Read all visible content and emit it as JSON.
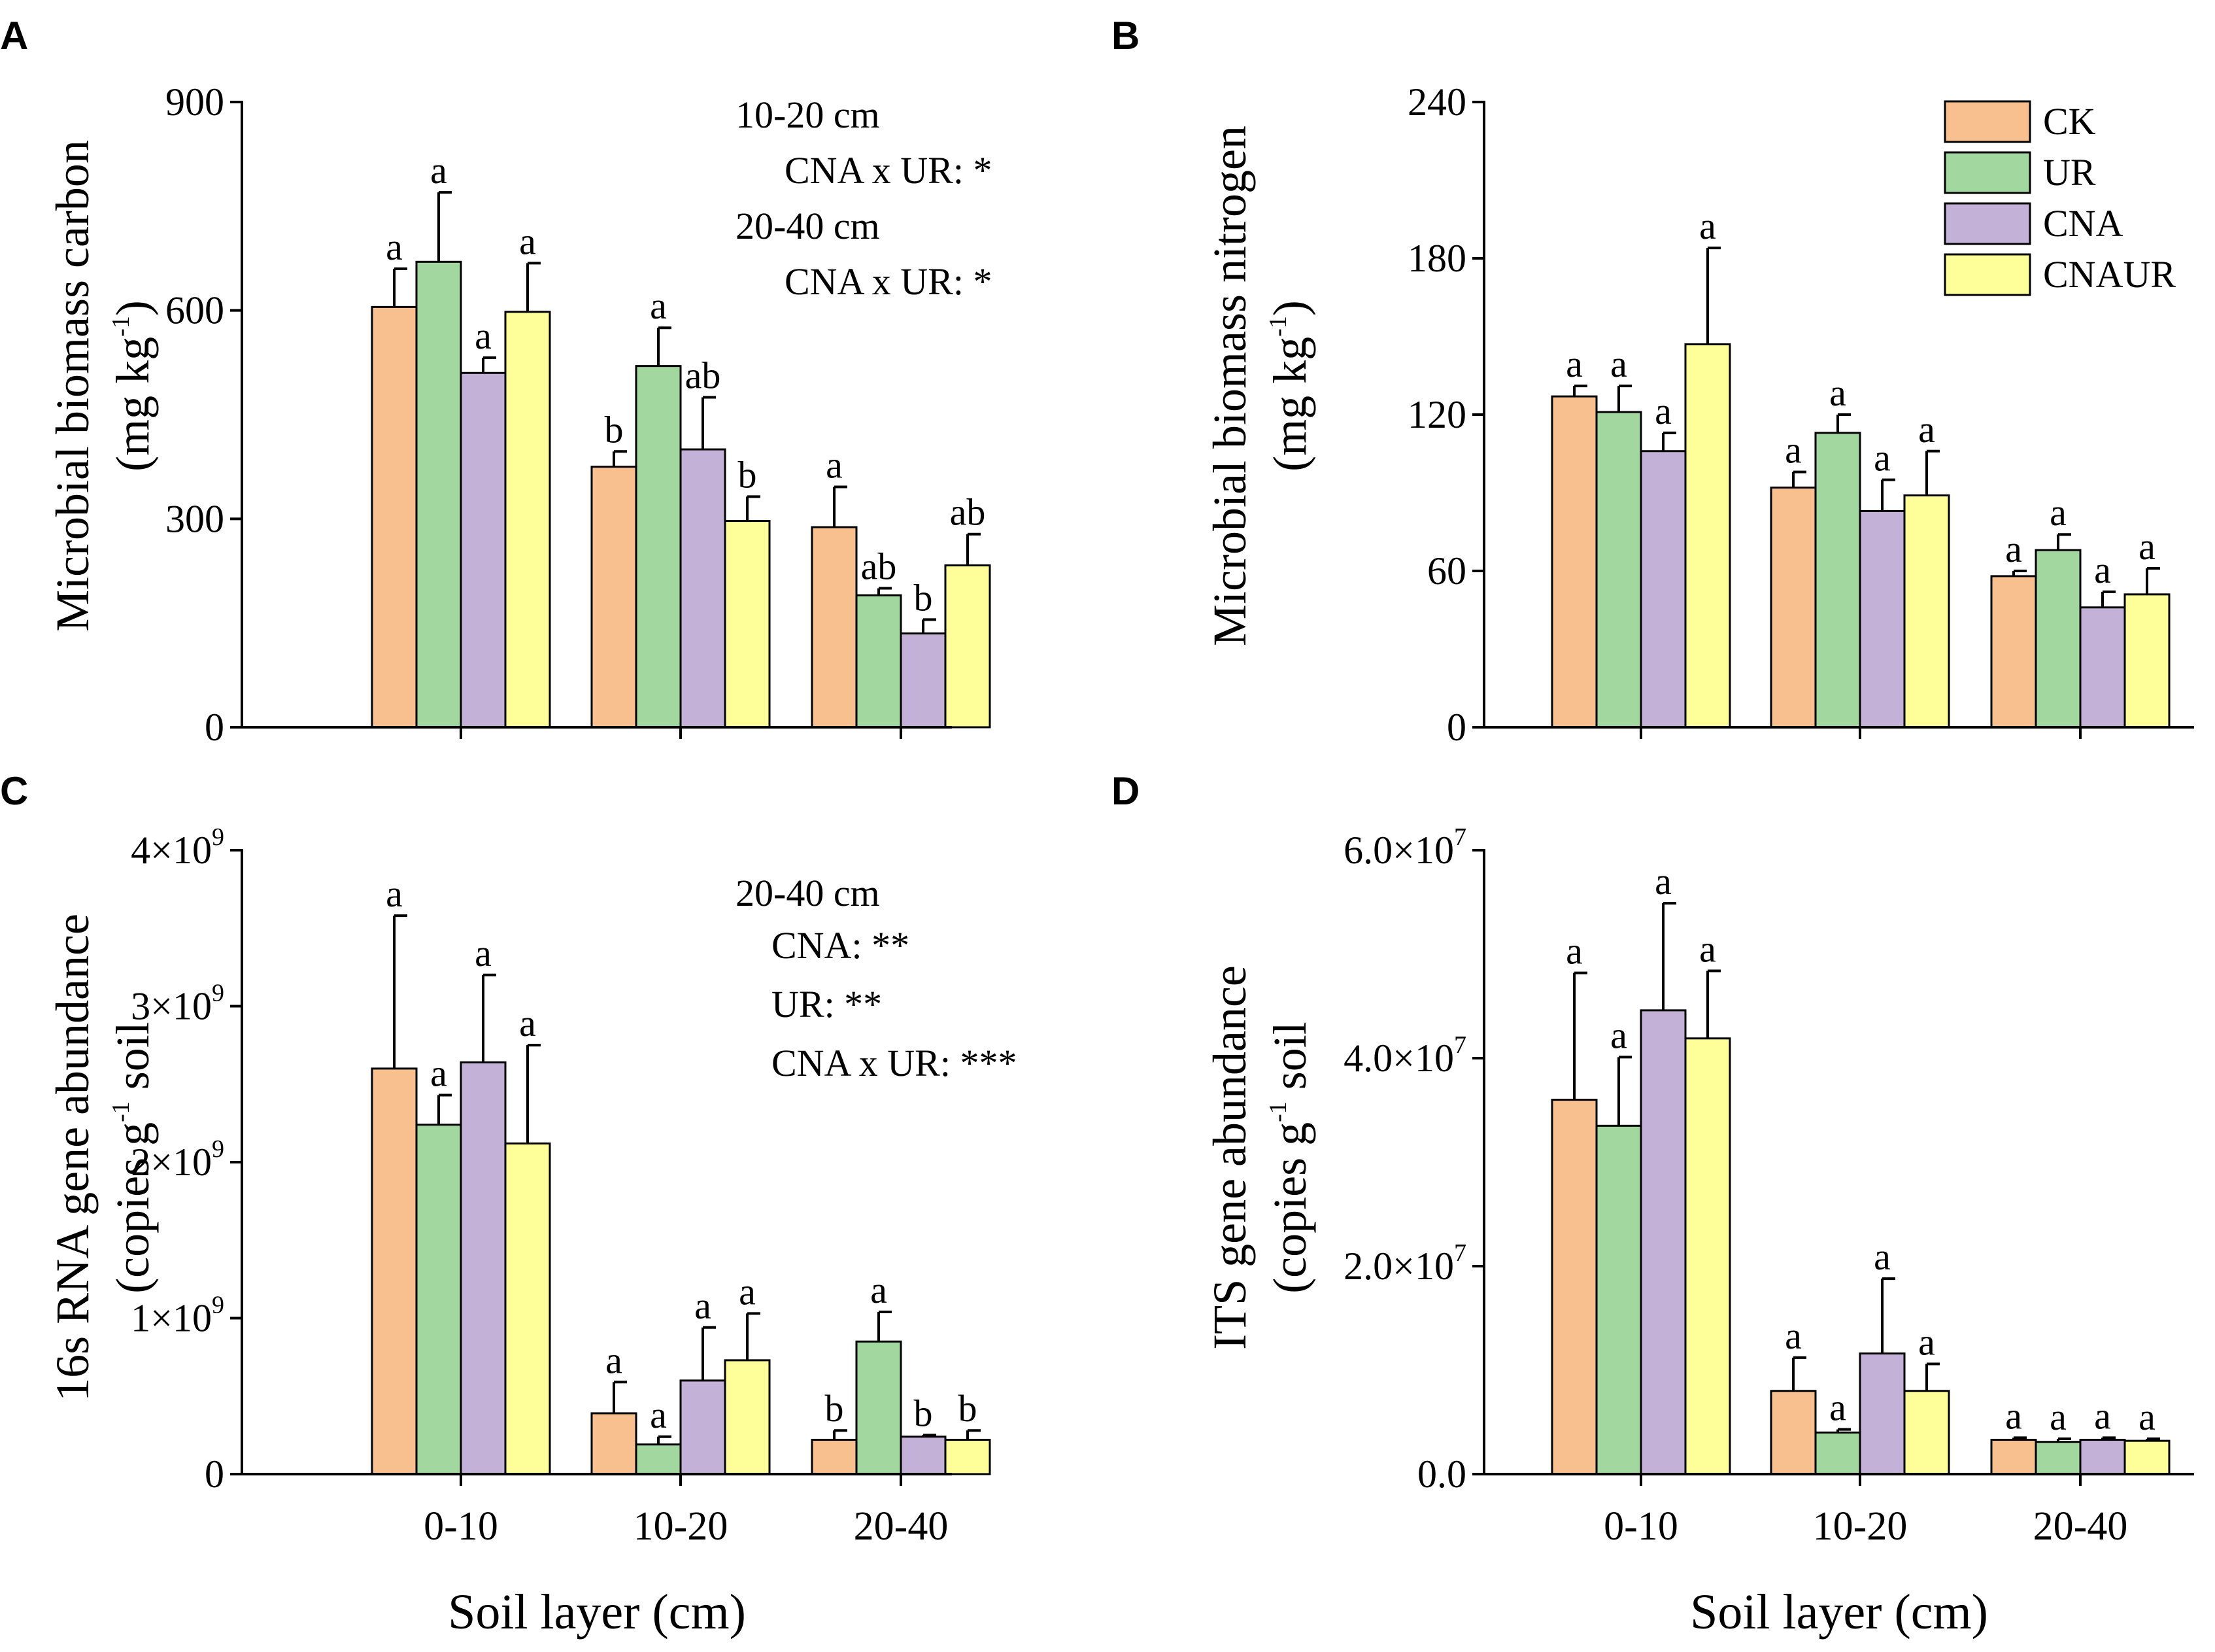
{
  "figure": {
    "x_label": "Soil layer (cm)",
    "groups": [
      "0-10",
      "10-20",
      "20-40"
    ],
    "legend": [
      {
        "name": "CK",
        "color": "#F9C08F"
      },
      {
        "name": "UR",
        "color": "#A3D7A0"
      },
      {
        "name": "CNA",
        "color": "#C3B1D7"
      },
      {
        "name": "CNAUR",
        "color": "#FFFF99"
      }
    ]
  },
  "chart_data": [
    {
      "panel": "A",
      "type": "bar",
      "ylabel_line1": "Microbial biomass carbon",
      "ylabel_line2": "(mg kg",
      "ylabel_sup": "-1",
      "ylabel_end": ")",
      "ylim": [
        0,
        900
      ],
      "yticks": [
        {
          "value": 0,
          "label": "0"
        },
        {
          "value": 300,
          "label": "300"
        },
        {
          "value": 600,
          "label": "600"
        },
        {
          "value": 900,
          "label": "900"
        }
      ],
      "categories": [
        "0-10",
        "10-20",
        "20-40"
      ],
      "series": [
        {
          "name": "CK",
          "values": [
            605,
            375,
            288
          ],
          "errors": [
            55,
            22,
            58
          ],
          "letters": [
            "a",
            "b",
            "a"
          ]
        },
        {
          "name": "UR",
          "values": [
            670,
            520,
            190
          ],
          "errors": [
            100,
            55,
            10
          ],
          "letters": [
            "a",
            "a",
            "ab"
          ]
        },
        {
          "name": "CNA",
          "values": [
            510,
            400,
            135
          ],
          "errors": [
            22,
            75,
            20
          ],
          "letters": [
            "a",
            "ab",
            "b"
          ]
        },
        {
          "name": "CNAUR",
          "values": [
            598,
            297,
            233
          ],
          "errors": [
            70,
            35,
            45
          ],
          "letters": [
            "a",
            "b",
            "ab"
          ]
        }
      ],
      "annotations": [
        "10-20 cm",
        "CNA x UR: *",
        "20-40 cm",
        "CNA x UR: *"
      ]
    },
    {
      "panel": "B",
      "type": "bar",
      "ylabel_line1": "Microbial biomass nitrogen",
      "ylabel_line2": "(mg kg",
      "ylabel_sup": "-1",
      "ylabel_end": ")",
      "ylim": [
        0,
        240
      ],
      "yticks": [
        {
          "value": 0,
          "label": "0"
        },
        {
          "value": 60,
          "label": "60"
        },
        {
          "value": 120,
          "label": "120"
        },
        {
          "value": 180,
          "label": "180"
        },
        {
          "value": 240,
          "label": "240"
        }
      ],
      "categories": [
        "0-10",
        "10-20",
        "20-40"
      ],
      "series": [
        {
          "name": "CK",
          "values": [
            127,
            92,
            58
          ],
          "errors": [
            4,
            6,
            2
          ],
          "letters": [
            "a",
            "a",
            "a"
          ]
        },
        {
          "name": "UR",
          "values": [
            121,
            113,
            68
          ],
          "errors": [
            10,
            7,
            6
          ],
          "letters": [
            "a",
            "a",
            "a"
          ]
        },
        {
          "name": "CNA",
          "values": [
            106,
            83,
            46
          ],
          "errors": [
            7,
            12,
            6
          ],
          "letters": [
            "a",
            "a",
            "a"
          ]
        },
        {
          "name": "CNAUR",
          "values": [
            147,
            89,
            51
          ],
          "errors": [
            37,
            17,
            10
          ],
          "letters": [
            "a",
            "a",
            "a"
          ]
        }
      ],
      "annotations": []
    },
    {
      "panel": "C",
      "type": "bar",
      "ylabel_line1": "16s RNA gene abundance",
      "ylabel_line2": "(copies g",
      "ylabel_sup": "-1",
      "ylabel_end": " soil",
      "ylim": [
        0,
        4
      ],
      "yticks": [
        {
          "value": 0,
          "label": "0"
        },
        {
          "value": 1,
          "label": "1×10",
          "exp": "9"
        },
        {
          "value": 2,
          "label": "2×10",
          "exp": "9"
        },
        {
          "value": 3,
          "label": "3×10",
          "exp": "9"
        },
        {
          "value": 4,
          "label": "4×10",
          "exp": "9"
        }
      ],
      "units": "×10^9",
      "categories": [
        "0-10",
        "10-20",
        "20-40"
      ],
      "series": [
        {
          "name": "CK",
          "values": [
            2.6,
            0.39,
            0.22
          ],
          "errors": [
            0.98,
            0.2,
            0.06
          ],
          "letters": [
            "a",
            "a",
            "b"
          ]
        },
        {
          "name": "UR",
          "values": [
            2.24,
            0.19,
            0.85
          ],
          "errors": [
            0.19,
            0.05,
            0.19
          ],
          "letters": [
            "a",
            "a",
            "a"
          ]
        },
        {
          "name": "CNA",
          "values": [
            2.64,
            0.6,
            0.24
          ],
          "errors": [
            0.56,
            0.34,
            0.01
          ],
          "letters": [
            "a",
            "a",
            "b"
          ]
        },
        {
          "name": "CNAUR",
          "values": [
            2.12,
            0.73,
            0.22
          ],
          "errors": [
            0.63,
            0.3,
            0.06
          ],
          "letters": [
            "a",
            "a",
            "b"
          ]
        }
      ],
      "annotations": [
        "20-40 cm",
        "CNA: **",
        "UR: **",
        "CNA x UR: ***"
      ]
    },
    {
      "panel": "D",
      "type": "bar",
      "ylabel_line1": "ITS gene abundance",
      "ylabel_line2": "(copies g",
      "ylabel_sup": "-1",
      "ylabel_end": " soil",
      "ylim": [
        0,
        6
      ],
      "yticks": [
        {
          "value": 0,
          "label": "0.0"
        },
        {
          "value": 2,
          "label": "2.0×10",
          "exp": "7"
        },
        {
          "value": 4,
          "label": "4.0×10",
          "exp": "7"
        },
        {
          "value": 6,
          "label": "6.0×10",
          "exp": "7"
        }
      ],
      "units": "×10^7",
      "categories": [
        "0-10",
        "10-20",
        "20-40"
      ],
      "series": [
        {
          "name": "CK",
          "values": [
            3.6,
            0.8,
            0.33
          ],
          "errors": [
            1.22,
            0.32,
            0.02
          ],
          "letters": [
            "a",
            "a",
            "a"
          ]
        },
        {
          "name": "UR",
          "values": [
            3.35,
            0.4,
            0.31
          ],
          "errors": [
            0.66,
            0.03,
            0.03
          ],
          "letters": [
            "a",
            "a",
            "a"
          ]
        },
        {
          "name": "CNA",
          "values": [
            4.46,
            1.16,
            0.33
          ],
          "errors": [
            1.03,
            0.72,
            0.02
          ],
          "letters": [
            "a",
            "a",
            "a"
          ]
        },
        {
          "name": "CNAUR",
          "values": [
            4.19,
            0.8,
            0.32
          ],
          "errors": [
            0.65,
            0.26,
            0.02
          ],
          "letters": [
            "a",
            "a",
            "a"
          ]
        }
      ],
      "annotations": []
    }
  ]
}
